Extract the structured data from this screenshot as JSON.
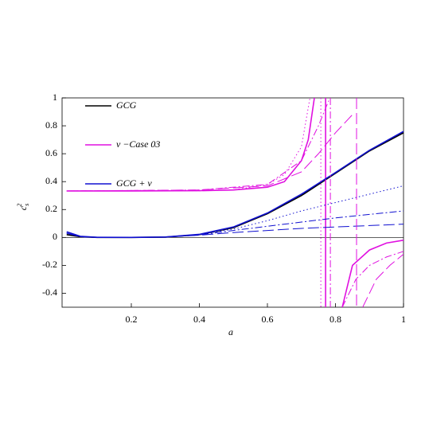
{
  "chart_data": {
    "type": "line",
    "x_label": "a",
    "y_label": {
      "base": "c",
      "sub": "s",
      "sup": "2"
    },
    "xlim": [
      0,
      1
    ],
    "ylim": [
      -0.5,
      1
    ],
    "xticks": [
      0.2,
      0.4,
      0.6,
      0.8,
      1
    ],
    "yticks": [
      -0.4,
      -0.2,
      0,
      0.2,
      0.4,
      0.6,
      0.8,
      1
    ],
    "grid": false,
    "legend": "upper left",
    "x": [
      0.01,
      0.05,
      0.1,
      0.2,
      0.3,
      0.4,
      0.5,
      0.6,
      0.7,
      0.8,
      0.9,
      1
    ],
    "series": [
      {
        "name": "GCG",
        "color": "#000000",
        "dash": "solid",
        "values": [
          0.02,
          0.005,
          0,
          0,
          0.002,
          0.02,
          0.07,
          0.17,
          0.3,
          0.46,
          0.62,
          0.75
        ]
      },
      {
        "name": "ν −Case 03",
        "color": "#e010e0",
        "dash": "solid",
        "x": [
          0.01,
          0.2,
          0.4,
          0.5,
          0.6,
          0.65,
          0.7,
          0.72,
          0.738,
          0.75,
          0.771,
          0.771,
          0.8,
          0.82,
          0.85,
          0.9,
          0.95,
          1
        ],
        "values": [
          0.333,
          0.333,
          0.335,
          0.34,
          0.36,
          0.4,
          0.55,
          0.7,
          1,
          null,
          1,
          -0.5,
          null,
          -0.5,
          -0.2,
          -0.09,
          -0.04,
          -0.02
        ]
      },
      {
        "name": "GCG + ν",
        "color": "#1010d0",
        "dash": "solid",
        "values": [
          0.04,
          0.008,
          0.001,
          0,
          0.003,
          0.022,
          0.075,
          0.175,
          0.31,
          0.465,
          0.625,
          0.76
        ]
      },
      {
        "color": "#1010d0",
        "dash": "dotted",
        "values": [
          0.03,
          0.005,
          0,
          0,
          0.003,
          0.02,
          0.06,
          0.12,
          0.19,
          0.25,
          0.31,
          0.37
        ]
      },
      {
        "color": "#1010d0",
        "dash": "dashdot",
        "values": [
          0.03,
          0.005,
          0,
          0,
          0.003,
          0.018,
          0.05,
          0.08,
          0.11,
          0.14,
          0.165,
          0.19
        ]
      },
      {
        "color": "#1010d0",
        "dash": "longdash",
        "values": [
          0.03,
          0.005,
          0,
          0,
          0.003,
          0.016,
          0.035,
          0.05,
          0.065,
          0.075,
          0.085,
          0.095
        ]
      },
      {
        "color": "#e010e0",
        "dash": "dotted",
        "x": [
          0.01,
          0.4,
          0.5,
          0.6,
          0.65,
          0.7,
          0.725,
          0.74,
          0.757,
          0.757
        ],
        "values": [
          0.333,
          0.335,
          0.34,
          0.38,
          0.45,
          0.65,
          1,
          null,
          1,
          -0.5
        ]
      },
      {
        "color": "#e010e0",
        "dash": "dashdot",
        "x": [
          0.01,
          0.4,
          0.6,
          0.7,
          0.75,
          0.78,
          0.782,
          0.785,
          0.785,
          0.79,
          0.82,
          0.86,
          0.9,
          0.95,
          1
        ],
        "values": [
          0.333,
          0.34,
          0.38,
          0.55,
          0.8,
          0.98,
          null,
          1,
          -0.5,
          null,
          -0.5,
          -0.3,
          -0.2,
          -0.14,
          -0.1
        ]
      },
      {
        "color": "#e010e0",
        "dash": "longdash",
        "x": [
          0.01,
          0.4,
          0.6,
          0.7,
          0.75,
          0.8,
          0.85,
          0.855,
          0.862,
          0.862,
          0.87,
          0.88,
          0.92,
          0.96,
          1
        ],
        "values": [
          0.333,
          0.34,
          0.37,
          0.47,
          0.6,
          0.75,
          0.88,
          null,
          1,
          -0.5,
          null,
          -0.5,
          -0.3,
          -0.2,
          -0.12
        ]
      }
    ]
  }
}
